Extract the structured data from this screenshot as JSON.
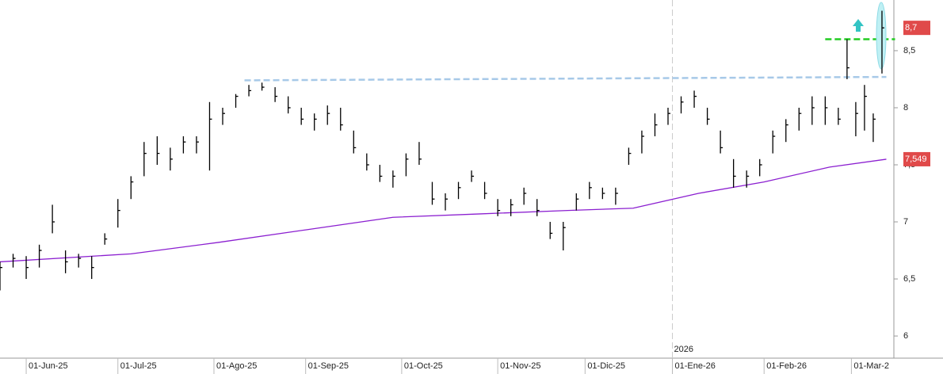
{
  "chart_data": {
    "type": "ohlc",
    "x": [
      0,
      3,
      6,
      9,
      12,
      15,
      18,
      21,
      24,
      27,
      30,
      33,
      36,
      39,
      42,
      45,
      48,
      51,
      54,
      57,
      60,
      63,
      66,
      69,
      72,
      75,
      78,
      81,
      84,
      87,
      90,
      93,
      96,
      99,
      102,
      105,
      108,
      111,
      114,
      117,
      120,
      123,
      126,
      129,
      132,
      135,
      138,
      141,
      144,
      147,
      150,
      153,
      156,
      159,
      162,
      165,
      168,
      171,
      174,
      177,
      180,
      183,
      186,
      189,
      192,
      194,
      196,
      198,
      200,
      202
    ],
    "high": [
      6.65,
      6.72,
      6.7,
      6.8,
      7.15,
      6.75,
      6.72,
      6.7,
      6.9,
      7.2,
      7.4,
      7.7,
      7.75,
      7.65,
      7.75,
      7.75,
      8.05,
      8.0,
      8.12,
      8.2,
      8.22,
      8.18,
      8.1,
      8.0,
      7.95,
      8.02,
      8.0,
      7.8,
      7.6,
      7.5,
      7.45,
      7.6,
      7.7,
      7.35,
      7.25,
      7.35,
      7.45,
      7.35,
      7.2,
      7.2,
      7.3,
      7.2,
      7.0,
      7.0,
      7.25,
      7.35,
      7.3,
      7.3,
      7.65,
      7.8,
      7.95,
      8.0,
      8.1,
      8.15,
      8.0,
      7.8,
      7.55,
      7.45,
      7.55,
      7.8,
      7.9,
      8.0,
      8.1,
      8.1,
      8.0,
      8.6,
      8.05,
      8.2,
      7.95,
      8.85
    ],
    "low": [
      6.4,
      6.6,
      6.5,
      6.6,
      6.9,
      6.55,
      6.6,
      6.5,
      6.8,
      6.95,
      7.2,
      7.4,
      7.5,
      7.45,
      7.6,
      7.6,
      7.45,
      7.85,
      8.0,
      8.1,
      8.15,
      8.05,
      7.95,
      7.85,
      7.8,
      7.85,
      7.8,
      7.6,
      7.45,
      7.35,
      7.3,
      7.4,
      7.5,
      7.15,
      7.1,
      7.2,
      7.35,
      7.2,
      7.05,
      7.05,
      7.15,
      7.05,
      6.85,
      6.75,
      7.1,
      7.2,
      7.2,
      7.15,
      7.5,
      7.6,
      7.75,
      7.85,
      7.95,
      8.0,
      7.85,
      7.6,
      7.3,
      7.3,
      7.4,
      7.6,
      7.7,
      7.8,
      7.85,
      7.85,
      7.85,
      8.25,
      7.75,
      7.8,
      7.7,
      8.3
    ],
    "close": [
      6.6,
      6.68,
      6.6,
      6.75,
      7.0,
      6.65,
      6.68,
      6.6,
      6.85,
      7.1,
      7.35,
      7.6,
      7.6,
      7.55,
      7.7,
      7.7,
      7.9,
      7.95,
      8.1,
      8.15,
      8.18,
      8.1,
      8.0,
      7.9,
      7.9,
      7.95,
      7.85,
      7.65,
      7.5,
      7.4,
      7.4,
      7.55,
      7.55,
      7.2,
      7.2,
      7.3,
      7.4,
      7.25,
      7.1,
      7.15,
      7.25,
      7.1,
      6.9,
      6.95,
      7.2,
      7.3,
      7.25,
      7.25,
      7.6,
      7.75,
      7.85,
      7.95,
      8.05,
      8.1,
      7.9,
      7.65,
      7.4,
      7.4,
      7.5,
      7.75,
      7.85,
      7.95,
      8.0,
      8.0,
      7.9,
      8.35,
      7.95,
      8.1,
      7.9,
      8.7
    ],
    "color": "#000000",
    "moving_average": {
      "color": "#8b1fd0",
      "x": [
        0,
        30,
        50,
        70,
        90,
        110,
        130,
        145,
        160,
        175,
        190,
        203
      ],
      "values": [
        6.65,
        6.72,
        6.82,
        6.93,
        7.04,
        7.07,
        7.1,
        7.12,
        7.25,
        7.35,
        7.48,
        7.549
      ]
    },
    "resistance": {
      "color": "#a7c9e8",
      "x": [
        56,
        203
      ],
      "values": [
        8.24,
        8.27
      ]
    },
    "target": {
      "color": "#22cc22",
      "x": [
        189,
        205
      ],
      "values": [
        8.6,
        8.6
      ]
    },
    "last_price": {
      "value": 8.7,
      "label": "8,7"
    },
    "ma_price": {
      "value": 7.549,
      "label": "7,549"
    },
    "year_marker": {
      "x": 154,
      "label": "2026"
    },
    "xlim": [
      0,
      204
    ],
    "ylim": [
      5.806,
      8.944
    ],
    "xticks": [
      {
        "value": 6,
        "label": "01-Jun-25"
      },
      {
        "value": 27,
        "label": "01-Jul-25"
      },
      {
        "value": 49,
        "label": "01-Ago-25"
      },
      {
        "value": 70,
        "label": "01-Sep-25"
      },
      {
        "value": 92,
        "label": "01-Oct-25"
      },
      {
        "value": 114,
        "label": "01-Nov-25"
      },
      {
        "value": 134,
        "label": "01-Dic-25"
      },
      {
        "value": 154,
        "label": "01-Ene-26"
      },
      {
        "value": 175,
        "label": "01-Feb-26"
      },
      {
        "value": 195,
        "label": "01-Mar-2"
      }
    ],
    "yticks": [
      6,
      {
        "value": 6.5,
        "label": "6,5"
      },
      7,
      {
        "value": 7.5,
        "label": "7,5"
      },
      8,
      {
        "value": 8.5,
        "label": "8,5"
      }
    ]
  }
}
